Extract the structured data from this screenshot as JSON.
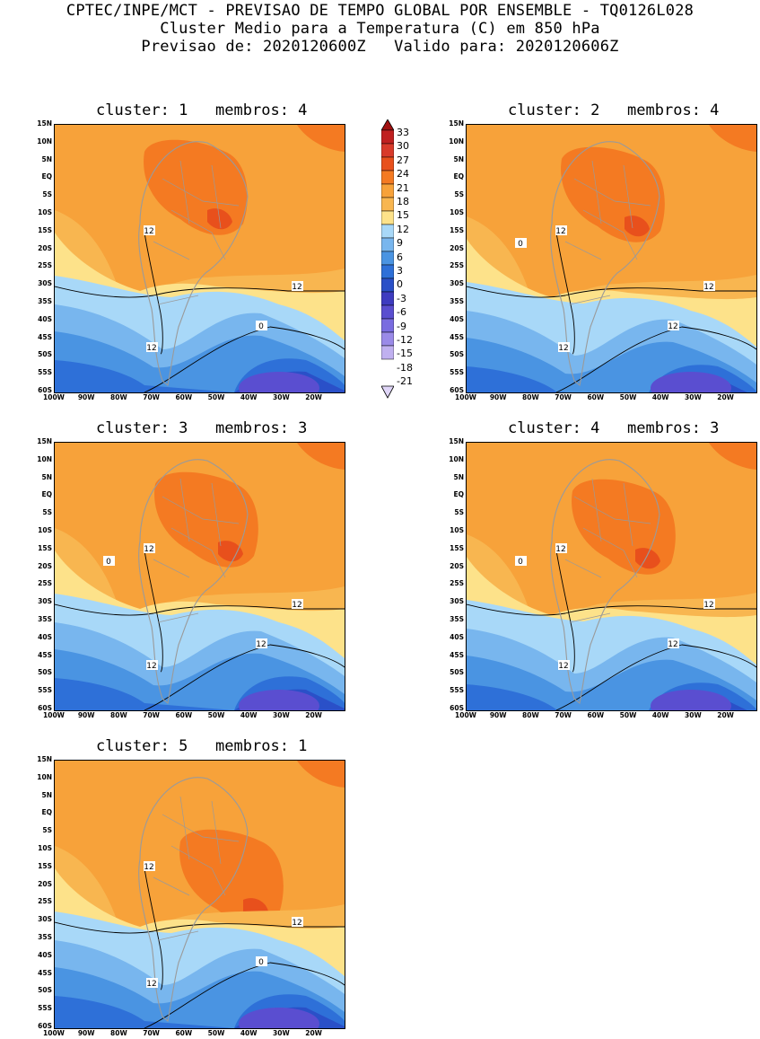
{
  "header": {
    "line1": "CPTEC/INPE/MCT - PREVISAO DE TEMPO GLOBAL POR ENSEMBLE - TQ0126L028",
    "line2": "Cluster Medio para a Temperatura (C) em 850 hPa",
    "line3": "Previsao de: 2020120600Z   Valido para: 2020120606Z"
  },
  "colorbar": {
    "levels": [
      "33",
      "30",
      "27",
      "24",
      "21",
      "18",
      "15",
      "12",
      "9",
      "6",
      "3",
      "0",
      "-3",
      "-6",
      "-9",
      "-12",
      "-15",
      "-18",
      "-21"
    ],
    "colors": [
      "#a01010",
      "#c02020",
      "#d83a2a",
      "#e8501c",
      "#f47a22",
      "#f7a23a",
      "#f8b650",
      "#fde28a",
      "#a8d8f8",
      "#78b6ee",
      "#4a94e2",
      "#2e70d8",
      "#2a50c8",
      "#3e3cc0",
      "#5a4ed0",
      "#7a6ce0",
      "#9a8ae8",
      "#c0b0f0",
      "#e0d6f8"
    ]
  },
  "axes": {
    "lat_ticks": [
      "15N",
      "10N",
      "5N",
      "EQ",
      "5S",
      "10S",
      "15S",
      "20S",
      "25S",
      "30S",
      "35S",
      "40S",
      "45S",
      "50S",
      "55S",
      "60S"
    ],
    "lon_ticks": [
      "100W",
      "90W",
      "80W",
      "70W",
      "60W",
      "50W",
      "40W",
      "30W",
      "20W"
    ]
  },
  "panels": [
    {
      "cluster": "1",
      "membros": "4",
      "title": "cluster: 1   membros: 4",
      "labels": [
        "12",
        "12",
        "12",
        "0"
      ]
    },
    {
      "cluster": "2",
      "membros": "4",
      "title": "cluster: 2   membros: 4",
      "labels": [
        "12",
        "12",
        "12",
        "12",
        "0"
      ]
    },
    {
      "cluster": "3",
      "membros": "3",
      "title": "cluster: 3   membros: 3",
      "labels": [
        "12",
        "12",
        "12",
        "12",
        "0"
      ]
    },
    {
      "cluster": "4",
      "membros": "3",
      "title": "cluster: 4   membros: 3",
      "labels": [
        "12",
        "12",
        "12",
        "12",
        "0"
      ]
    },
    {
      "cluster": "5",
      "membros": "1",
      "title": "cluster: 5   membros: 1",
      "labels": [
        "12",
        "12",
        "12",
        "0"
      ]
    }
  ]
}
